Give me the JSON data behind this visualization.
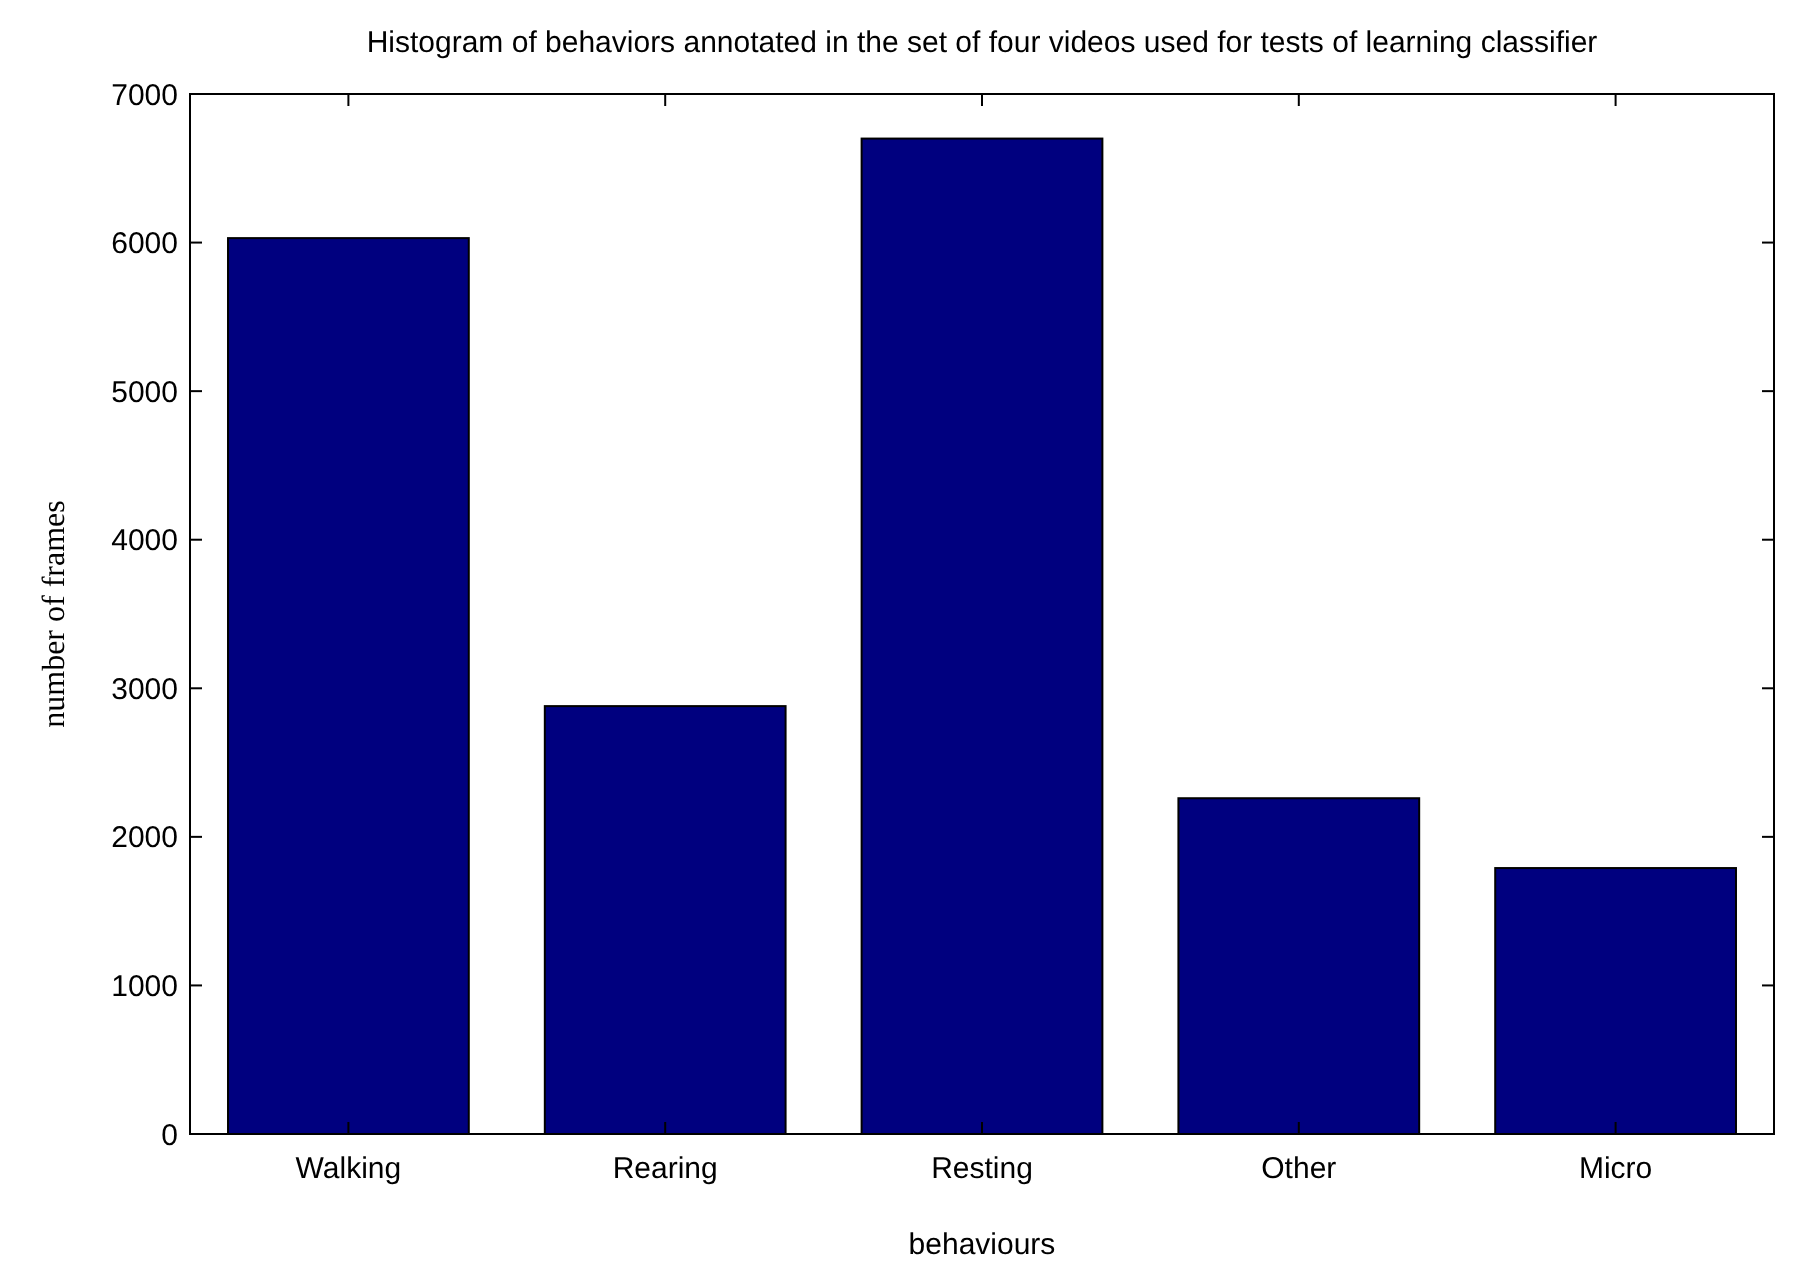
{
  "chart_data": {
    "type": "bar",
    "title": "Histogram of behaviors annotated in the set of four videos used for tests of learning classifier",
    "xlabel": "behaviours",
    "ylabel": "number of frames",
    "categories": [
      "Walking",
      "Rearing",
      "Resting",
      "Other",
      "Micro"
    ],
    "values": [
      6030,
      2880,
      6700,
      2260,
      1790
    ],
    "color": "#00007f",
    "ylim": [
      0,
      7000
    ],
    "yticks": [
      0,
      1000,
      2000,
      3000,
      4000,
      5000,
      6000,
      7000
    ],
    "grid": false
  }
}
